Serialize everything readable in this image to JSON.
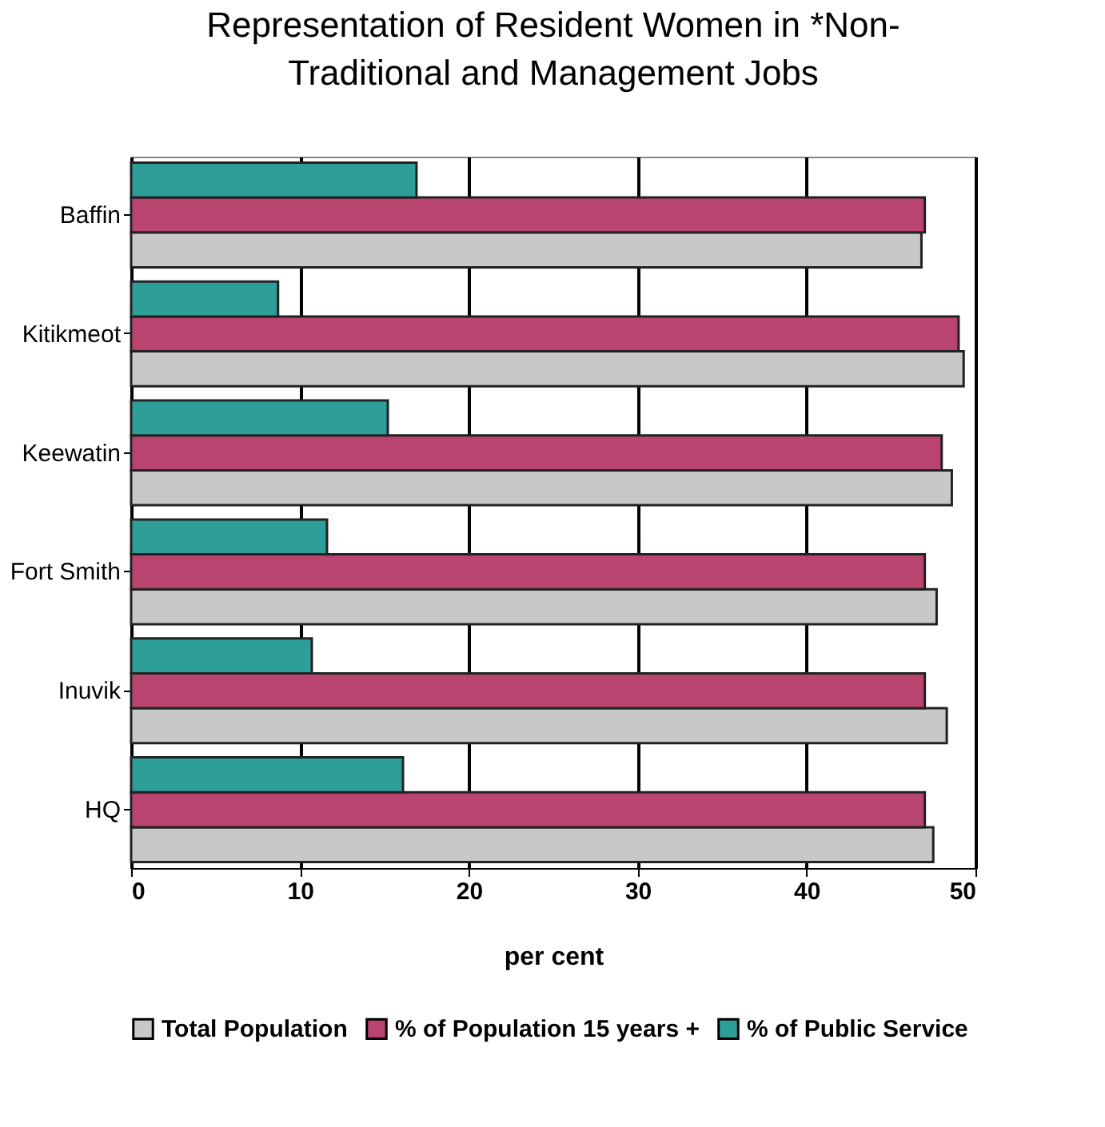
{
  "chart_data": {
    "type": "bar",
    "orientation": "horizontal",
    "title": "Representation of Resident Women in *Non-Traditional and Management Jobs",
    "xlabel": "per cent",
    "categories": [
      "Baffin",
      "Kitikmeot",
      "Keewatin",
      "Fort Smith",
      "Inuvik",
      "HQ"
    ],
    "series": [
      {
        "name": "Total Population",
        "color": "#c8c8c8",
        "values": [
          46.8,
          49.3,
          48.6,
          47.7,
          48.3,
          47.5
        ]
      },
      {
        "name": "% of Population 15 years +",
        "color": "#b8446f",
        "values": [
          47,
          49,
          48,
          47,
          47,
          47
        ]
      },
      {
        "name": "% of Public Service",
        "color": "#2e9e98",
        "values": [
          16.9,
          8.7,
          15.2,
          11.6,
          10.7,
          16.1
        ]
      }
    ],
    "xlim": [
      0,
      50
    ],
    "xticks": [
      0,
      10,
      20,
      30,
      40,
      50
    ],
    "grid": "x",
    "legend": "bottom"
  }
}
